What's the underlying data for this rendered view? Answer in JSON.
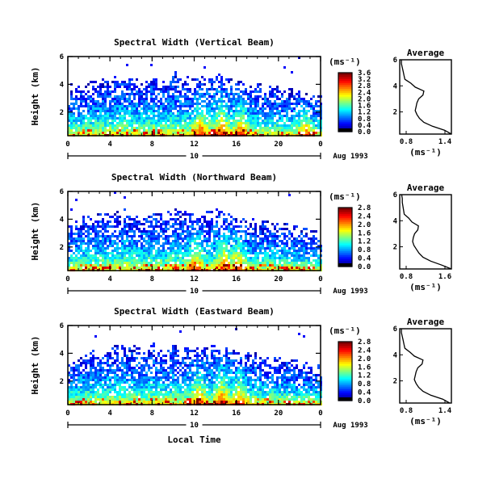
{
  "figure": {
    "xlabel": "Local Time",
    "date_label": "Aug 1993",
    "day_label": "10",
    "colorbar_units": "(ms⁻¹)",
    "profile_units": "(ms⁻¹)",
    "profile_title": "Average"
  },
  "chart_data": [
    {
      "type": "heatmap",
      "title": "Spectral Width (Vertical Beam)",
      "ylabel": "Height (km)",
      "xlabel": "",
      "x_ticks": [
        "0",
        "4",
        "8",
        "12",
        "16",
        "20",
        "0"
      ],
      "y_ticks": [
        "2",
        "4",
        "6"
      ],
      "xlim": [
        0,
        24
      ],
      "ylim": [
        0.3,
        6
      ],
      "colorbar_ticks": [
        "0.0",
        "0.4",
        "0.8",
        "1.2",
        "1.6",
        "2.0",
        "2.4",
        "2.8",
        "3.2",
        "3.6"
      ],
      "colorbar_range": [
        0.0,
        3.6
      ],
      "cloud_top_km": [
        3.5,
        4.0,
        4.2,
        4.3,
        4.4,
        4.8,
        4.7,
        4.2,
        4.8,
        4.4,
        4.9,
        4.6,
        4.4,
        4.6,
        4.8,
        4.5,
        4.2,
        4.1,
        4.1,
        3.9,
        3.8,
        3.7,
        3.5,
        3.2,
        3.2
      ],
      "hot_spots_hours": [
        12.5,
        14.5,
        16.3,
        22.5
      ],
      "profile": {
        "title": "Average",
        "xlim": [
          0.8,
          1.4
        ],
        "x_ticks": [
          "0.8",
          "1.4"
        ],
        "y_ticks": [
          "2",
          "4",
          "6"
        ],
        "ylim": [
          0.3,
          6
        ],
        "height_km": [
          0.3,
          0.6,
          0.9,
          1.2,
          1.5,
          1.8,
          2.1,
          2.4,
          2.7,
          3.0,
          3.3,
          3.6,
          3.9,
          4.2,
          4.5,
          4.8,
          5.1,
          5.4,
          5.7,
          6.0
        ],
        "values": [
          1.4,
          1.32,
          1.18,
          1.08,
          1.03,
          1.0,
          0.98,
          0.99,
          1.0,
          1.02,
          1.07,
          1.08,
          0.98,
          0.93,
          0.86,
          0.85,
          0.84,
          0.83,
          0.82,
          0.82
        ]
      }
    },
    {
      "type": "heatmap",
      "title": "Spectral Width (Northward Beam)",
      "ylabel": "Height (km)",
      "xlabel": "",
      "x_ticks": [
        "0",
        "4",
        "8",
        "12",
        "16",
        "20",
        "0"
      ],
      "y_ticks": [
        "2",
        "4",
        "6"
      ],
      "xlim": [
        0,
        24
      ],
      "ylim": [
        0.3,
        6
      ],
      "colorbar_ticks": [
        "0.0",
        "0.4",
        "0.8",
        "1.2",
        "1.6",
        "2.0",
        "2.4",
        "2.8"
      ],
      "colorbar_range": [
        0.0,
        2.8
      ],
      "cloud_top_km": [
        3.6,
        4.1,
        4.3,
        4.4,
        4.4,
        4.7,
        4.6,
        4.3,
        4.7,
        4.3,
        4.8,
        4.5,
        4.3,
        4.5,
        4.7,
        4.4,
        4.2,
        4.0,
        4.0,
        3.8,
        3.7,
        3.6,
        3.4,
        3.2,
        3.1
      ],
      "hot_spots_hours": [
        12.0,
        14.8,
        16.0
      ],
      "profile": {
        "title": "Average",
        "xlim": [
          0.8,
          1.6
        ],
        "x_ticks": [
          "0.8",
          "1.6"
        ],
        "y_ticks": [
          "2",
          "4",
          "6"
        ],
        "ylim": [
          0.3,
          6
        ],
        "height_km": [
          0.3,
          0.6,
          0.9,
          1.2,
          1.5,
          1.8,
          2.1,
          2.4,
          2.7,
          3.0,
          3.3,
          3.6,
          3.9,
          4.2,
          4.5,
          4.8,
          5.1,
          5.4,
          5.7,
          6.0
        ],
        "values": [
          1.6,
          1.45,
          1.28,
          1.16,
          1.1,
          1.06,
          1.02,
          1.0,
          1.01,
          1.03,
          1.08,
          1.09,
          0.99,
          0.94,
          0.87,
          0.86,
          0.85,
          0.84,
          0.84,
          0.83
        ]
      }
    },
    {
      "type": "heatmap",
      "title": "Spectral Width (Eastward Beam)",
      "ylabel": "Height (km)",
      "xlabel": "Local Time",
      "x_ticks": [
        "0",
        "4",
        "8",
        "12",
        "16",
        "20",
        "0"
      ],
      "y_ticks": [
        "2",
        "4",
        "6"
      ],
      "xlim": [
        0,
        24
      ],
      "ylim": [
        0.3,
        6
      ],
      "colorbar_ticks": [
        "0.0",
        "0.4",
        "0.8",
        "1.2",
        "1.6",
        "2.0",
        "2.4",
        "2.8"
      ],
      "colorbar_range": [
        0.0,
        2.8
      ],
      "cloud_top_km": [
        3.5,
        4.0,
        4.2,
        4.3,
        4.4,
        4.7,
        4.6,
        4.2,
        4.7,
        4.3,
        4.8,
        4.5,
        4.3,
        4.5,
        4.7,
        4.4,
        4.1,
        4.0,
        4.0,
        3.8,
        3.7,
        3.6,
        3.4,
        3.2,
        3.1
      ],
      "hot_spots_hours": [
        12.3,
        14.6,
        16.2
      ],
      "profile": {
        "title": "Average",
        "xlim": [
          0.8,
          1.4
        ],
        "x_ticks": [
          "0.8",
          "1.4"
        ],
        "y_ticks": [
          "2",
          "4",
          "6"
        ],
        "ylim": [
          0.3,
          6
        ],
        "height_km": [
          0.3,
          0.6,
          0.9,
          1.2,
          1.5,
          1.8,
          2.1,
          2.4,
          2.7,
          3.0,
          3.3,
          3.6,
          3.9,
          4.2,
          4.5,
          4.8,
          5.1,
          5.4,
          5.7,
          6.0
        ],
        "values": [
          1.38,
          1.3,
          1.16,
          1.07,
          1.02,
          0.99,
          0.97,
          0.98,
          0.99,
          1.01,
          1.06,
          1.07,
          0.97,
          0.92,
          0.86,
          0.85,
          0.84,
          0.83,
          0.82,
          0.82
        ]
      }
    }
  ]
}
